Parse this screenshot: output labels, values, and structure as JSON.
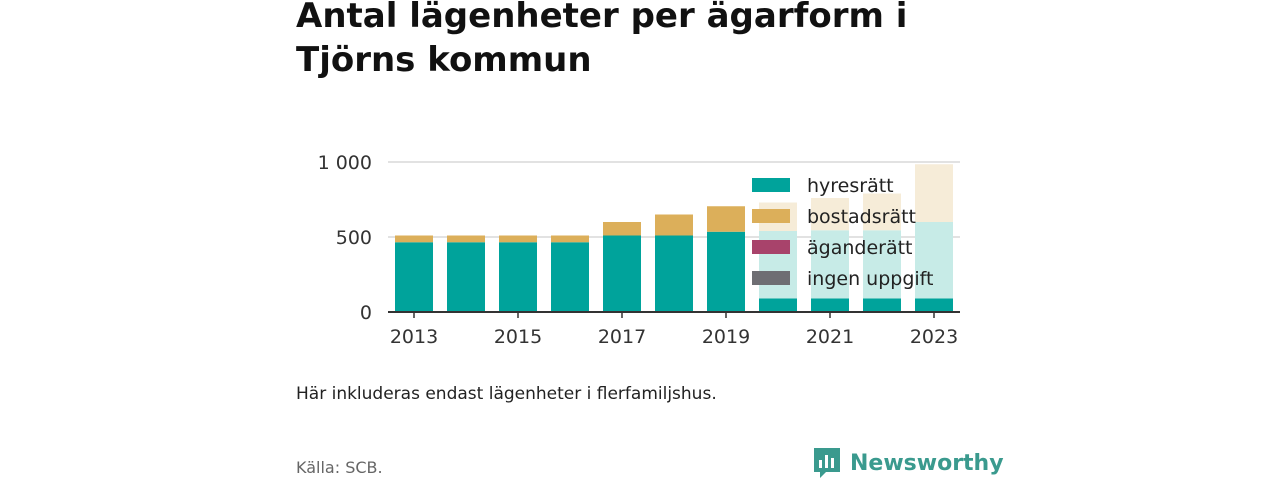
{
  "title": "Antal lägenheter per ägarform i Tjörns kommun",
  "note": "Här inkluderas endast lägenheter i flerfamiljshus.",
  "source": "Källa: SCB.",
  "brand": {
    "name": "Newsworthy",
    "icon": "newsworthy-logo-icon",
    "color": "#3a9a8e"
  },
  "chart_data": {
    "type": "bar",
    "stacked": true,
    "categories": [
      "2013",
      "2014",
      "2015",
      "2016",
      "2017",
      "2018",
      "2019",
      "2020",
      "2021",
      "2022",
      "2023"
    ],
    "x_tick_labels": [
      "2013",
      "2015",
      "2017",
      "2019",
      "2021",
      "2023"
    ],
    "y_ticks": [
      0,
      500,
      1000
    ],
    "y_tick_labels": [
      "0",
      "500",
      "1 000"
    ],
    "ylim": [
      0,
      1000
    ],
    "grid": true,
    "legend_position": "top-right",
    "series": [
      {
        "name": "hyresrätt",
        "color": "#00a39b",
        "values": [
          465,
          465,
          465,
          465,
          510,
          510,
          535,
          90,
          90,
          90,
          90
        ]
      },
      {
        "name": "bostadsrätt",
        "color": "#dcaf5a",
        "values": [
          45,
          45,
          45,
          45,
          90,
          140,
          170,
          0,
          0,
          0,
          40
        ]
      },
      {
        "name": "äganderätt",
        "color": "#a8436b",
        "values": [
          0,
          0,
          0,
          0,
          0,
          0,
          0,
          0,
          0,
          0,
          0
        ]
      },
      {
        "name": "ingen uppgift",
        "color": "#6e6e73",
        "values": [
          0,
          0,
          0,
          0,
          0,
          0,
          0,
          0,
          0,
          0,
          0
        ]
      }
    ],
    "faded_segments": [
      {
        "category": "2020",
        "series": "hyresrätt",
        "values_from": 90,
        "values_to": 540,
        "color": "#c7ebe7"
      },
      {
        "category": "2020",
        "series": "bostadsrätt",
        "values_from": 540,
        "values_to": 730,
        "color": "#f6ecd8"
      },
      {
        "category": "2021",
        "series": "hyresrätt",
        "values_from": 90,
        "values_to": 545,
        "color": "#c7ebe7"
      },
      {
        "category": "2021",
        "series": "bostadsrätt",
        "values_from": 545,
        "values_to": 760,
        "color": "#f6ecd8"
      },
      {
        "category": "2022",
        "series": "hyresrätt",
        "values_from": 90,
        "values_to": 545,
        "color": "#c7ebe7"
      },
      {
        "category": "2022",
        "series": "bostadsrätt",
        "values_from": 545,
        "values_to": 790,
        "color": "#f6ecd8"
      },
      {
        "category": "2023",
        "series": "hyresrätt",
        "values_from": 90,
        "values_to": 600,
        "color": "#c7ebe7"
      },
      {
        "category": "2023",
        "series": "bostadsrätt",
        "values_from": 600,
        "values_to": 985,
        "color": "#f6ecd8"
      }
    ]
  }
}
